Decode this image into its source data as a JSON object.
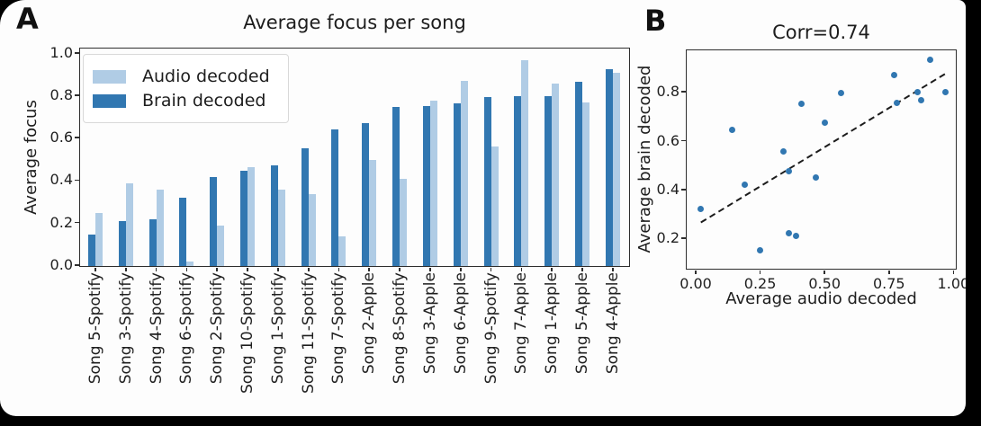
{
  "figure": {
    "panel_a_label": "A",
    "panel_b_label": "B"
  },
  "colors": {
    "audio_decoded": "#b0cce5",
    "brain_decoded": "#3177b1",
    "scatter_point": "#3177b1",
    "trend_line": "#1c1c1c"
  },
  "chart_data": [
    {
      "type": "bar",
      "title": "Average focus per song",
      "xlabel": "",
      "ylabel": "Average focus",
      "ylim": [
        0.0,
        1.0
      ],
      "yticks": [
        "0.0",
        "0.2",
        "0.4",
        "0.6",
        "0.8",
        "1.0"
      ],
      "grid": false,
      "legend_position": "upper left",
      "legend": [
        {
          "label": "Audio decoded",
          "color": "#b0cce5"
        },
        {
          "label": "Brain decoded",
          "color": "#3177b1"
        }
      ],
      "categories": [
        "Song 5-Spotify",
        "Song 3-Spotify",
        "Song 4-Spotify",
        "Song 6-Spotify",
        "Song 2-Spotify",
        "Song 10-Spotify",
        "Song 1-Spotify",
        "Song 11-Spotify",
        "Song 7-Spotify",
        "Song 2-Apple",
        "Song 8-Spotify",
        "Song 3-Apple",
        "Song 6-Apple",
        "Song 9-Spotify",
        "Song 7-Apple",
        "Song 1-Apple",
        "Song 5-Apple",
        "Song 4-Apple"
      ],
      "series": [
        {
          "name": "Brain decoded",
          "color": "#3177b1",
          "values": [
            0.15,
            0.21,
            0.22,
            0.32,
            0.42,
            0.45,
            0.475,
            0.555,
            0.645,
            0.675,
            0.75,
            0.755,
            0.765,
            0.795,
            0.8,
            0.8,
            0.87,
            0.93
          ]
        },
        {
          "name": "Audio decoded",
          "color": "#b0cce5",
          "values": [
            0.25,
            0.39,
            0.36,
            0.02,
            0.19,
            0.465,
            0.36,
            0.34,
            0.14,
            0.5,
            0.41,
            0.78,
            0.875,
            0.565,
            0.97,
            0.86,
            0.77,
            0.91
          ]
        }
      ]
    },
    {
      "type": "scatter",
      "title": "Corr=0.74",
      "xlabel": "Average audio decoded",
      "ylabel": "Average brain decoded",
      "xlim": [
        -0.035,
        1.005
      ],
      "ylim": [
        0.08,
        0.97
      ],
      "xticks": [
        "0.00",
        "0.25",
        "0.50",
        "0.75",
        "1.00"
      ],
      "yticks": [
        "0.2",
        "0.4",
        "0.6",
        "0.8"
      ],
      "grid": false,
      "point_color": "#3177b1",
      "points": [
        [
          0.25,
          0.15
        ],
        [
          0.39,
          0.21
        ],
        [
          0.36,
          0.22
        ],
        [
          0.02,
          0.32
        ],
        [
          0.19,
          0.42
        ],
        [
          0.465,
          0.45
        ],
        [
          0.36,
          0.475
        ],
        [
          0.34,
          0.555
        ],
        [
          0.14,
          0.645
        ],
        [
          0.5,
          0.675
        ],
        [
          0.41,
          0.75
        ],
        [
          0.78,
          0.755
        ],
        [
          0.875,
          0.765
        ],
        [
          0.565,
          0.795
        ],
        [
          0.97,
          0.8
        ],
        [
          0.86,
          0.8
        ],
        [
          0.77,
          0.87
        ],
        [
          0.91,
          0.93
        ]
      ],
      "trendline": {
        "style": "dashed",
        "x1": 0.02,
        "y1": 0.265,
        "x2": 0.97,
        "y2": 0.875
      }
    }
  ]
}
